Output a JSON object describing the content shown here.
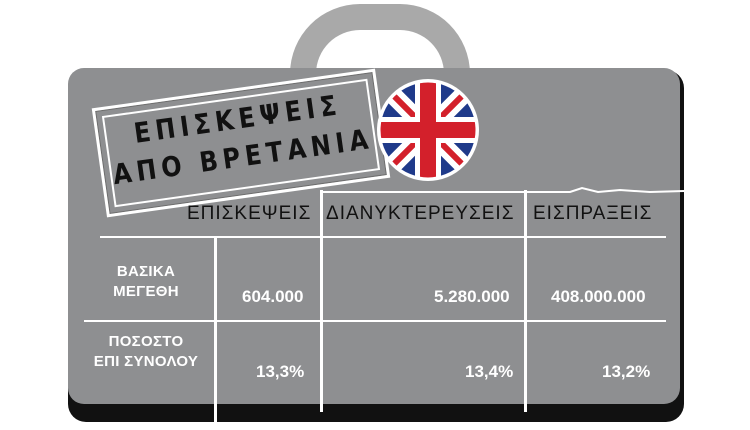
{
  "stamp": {
    "line1": "ΕΠΙΣΚΕΨΕΙΣ",
    "line2": "ΑΠΟ ΒΡΕΤΑΝΙΑ"
  },
  "flag": {
    "name": "uk-flag-icon",
    "colors": {
      "blue": "#1f3a8a",
      "red": "#d3202b",
      "white": "#ffffff"
    }
  },
  "table": {
    "headers": [
      "ΕΠΙΣΚΕΨΕΙΣ",
      "ΔΙΑΝΥΚΤΕΡΕΥΣΕΙΣ",
      "ΕΙΣΠΡΑΞΕΙΣ"
    ],
    "rows": [
      {
        "label_line1": "ΒΑΣΙΚΑ",
        "label_line2": "ΜΕΓΕΘΗ",
        "values": [
          "604.000",
          "5.280.000",
          "408.000.000"
        ]
      },
      {
        "label_line1": "ΠΟΣΟΣΤΟ",
        "label_line2": "ΕΠΙ ΣΥΝΟΛΟΥ",
        "values": [
          "13,3%",
          "13,4%",
          "13,2%"
        ]
      }
    ]
  },
  "colors": {
    "case": "#8e8f91",
    "handle": "#a9a9a9",
    "lines": "#ffffff"
  }
}
